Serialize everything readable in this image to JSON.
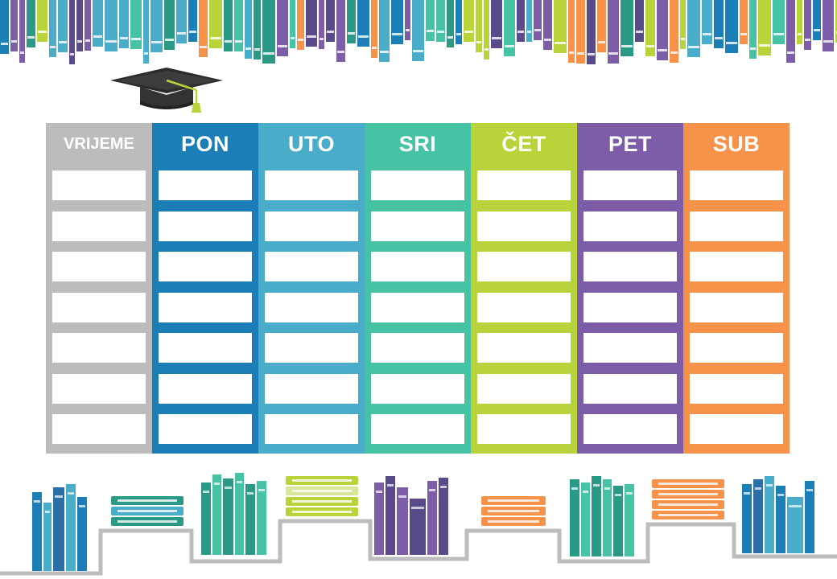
{
  "timetable": {
    "columns": [
      {
        "label": "VRIJEME",
        "color": "#bcbcbc"
      },
      {
        "label": "PON",
        "color": "#1c7eb6"
      },
      {
        "label": "UTO",
        "color": "#49acc8"
      },
      {
        "label": "SRI",
        "color": "#46c2a4"
      },
      {
        "label": "ČET",
        "color": "#b8d43a"
      },
      {
        "label": "PET",
        "color": "#7d5ca8"
      },
      {
        "label": "SUB",
        "color": "#f6924a"
      }
    ],
    "rows": 7
  },
  "decorations": {
    "top_border": "books-border",
    "cap_icon": "graduation-cap-icon",
    "bottom_border": "books-on-steps",
    "palette": [
      "#1c7eb6",
      "#49acc8",
      "#46c2a4",
      "#b8d43a",
      "#7d5ca8",
      "#f6924a",
      "#2a9a86",
      "#5a4a8a"
    ]
  }
}
